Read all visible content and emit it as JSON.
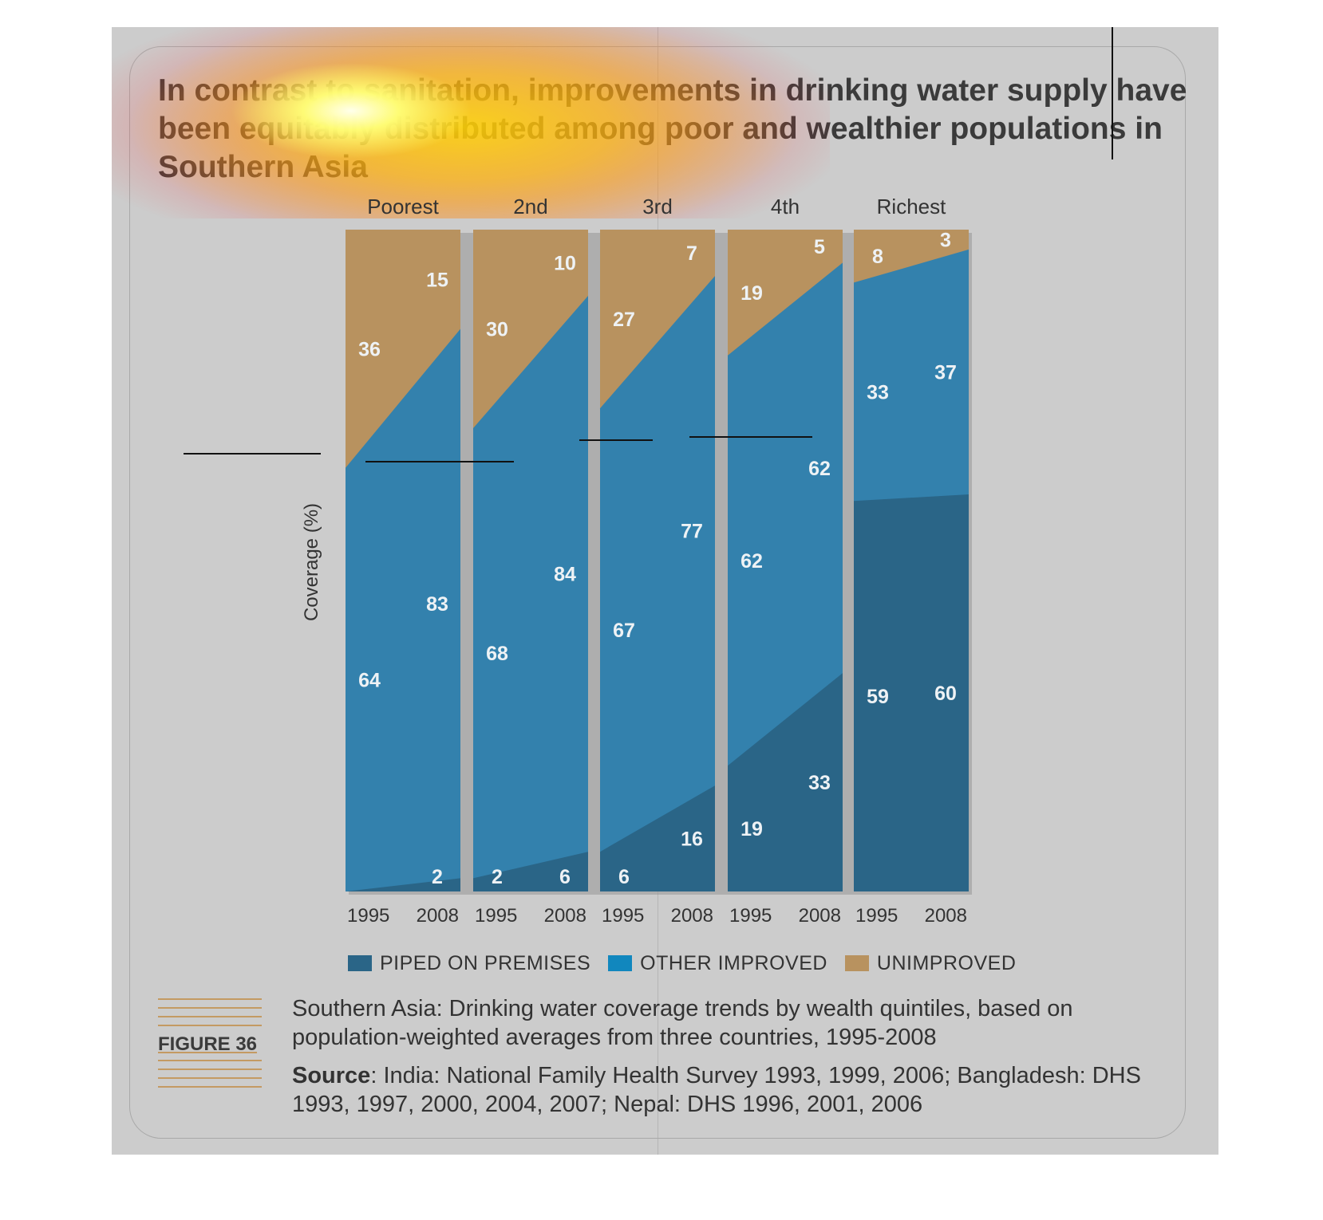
{
  "title": "In contrast to sanitation, improvements in drinking water supply have been equitably distributed among poor and wealthier populations in Southern Asia",
  "figure_label": "FIGURE 36",
  "caption": "Southern Asia: Drinking water coverage trends by wealth quintiles, based on population-weighted averages from three countries, 1995-2008",
  "source_label": "Source",
  "source_text": ": India: National Family Health Survey 1993, 1999, 2006; Bangladesh: DHS 1993, 1997, 2000, 2004, 2007; Nepal: DHS 1996, 2001, 2006",
  "colors": {
    "piped": "#2a6587",
    "other": "#3381ad",
    "unimproved": "#b8925f",
    "legend_other": "#1187be"
  },
  "chart_data": {
    "type": "area",
    "ylabel": "Coverage (%)",
    "ylim": [
      0,
      100
    ],
    "x": [
      "1995",
      "2008"
    ],
    "groups": [
      {
        "name": "Poorest",
        "piped": [
          0,
          2
        ],
        "other": [
          64,
          83
        ],
        "unimproved": [
          36,
          15
        ],
        "labels": {
          "piped": [
            "",
            "2"
          ],
          "other": [
            "64",
            "83"
          ],
          "unimproved": [
            "36",
            "15"
          ]
        }
      },
      {
        "name": "2nd",
        "piped": [
          2,
          6
        ],
        "other": [
          68,
          84
        ],
        "unimproved": [
          30,
          10
        ],
        "labels": {
          "piped": [
            "2",
            "6"
          ],
          "other": [
            "68",
            "84"
          ],
          "unimproved": [
            "30",
            "10"
          ]
        }
      },
      {
        "name": "3rd",
        "piped": [
          6,
          16
        ],
        "other": [
          67,
          77
        ],
        "unimproved": [
          27,
          7
        ],
        "labels": {
          "piped": [
            "6",
            "16"
          ],
          "other": [
            "67",
            "77"
          ],
          "unimproved": [
            "27",
            "7"
          ]
        }
      },
      {
        "name": "4th",
        "piped": [
          19,
          33
        ],
        "other": [
          62,
          62
        ],
        "unimproved": [
          19,
          5
        ],
        "labels": {
          "piped": [
            "19",
            "33"
          ],
          "other": [
            "62",
            "62"
          ],
          "unimproved": [
            "19",
            "5"
          ]
        }
      },
      {
        "name": "Richest",
        "piped": [
          59,
          60
        ],
        "other": [
          33,
          37
        ],
        "unimproved": [
          8,
          3
        ],
        "labels": {
          "piped": [
            "59",
            "60"
          ],
          "other": [
            "33",
            "37"
          ],
          "unimproved": [
            "8",
            "3"
          ]
        }
      }
    ],
    "series": [
      {
        "name": "PIPED ON PREMISES",
        "key": "piped"
      },
      {
        "name": "OTHER IMPROVED",
        "key": "other"
      },
      {
        "name": "UNIMPROVED",
        "key": "unimproved"
      }
    ],
    "legend": "bottom"
  }
}
